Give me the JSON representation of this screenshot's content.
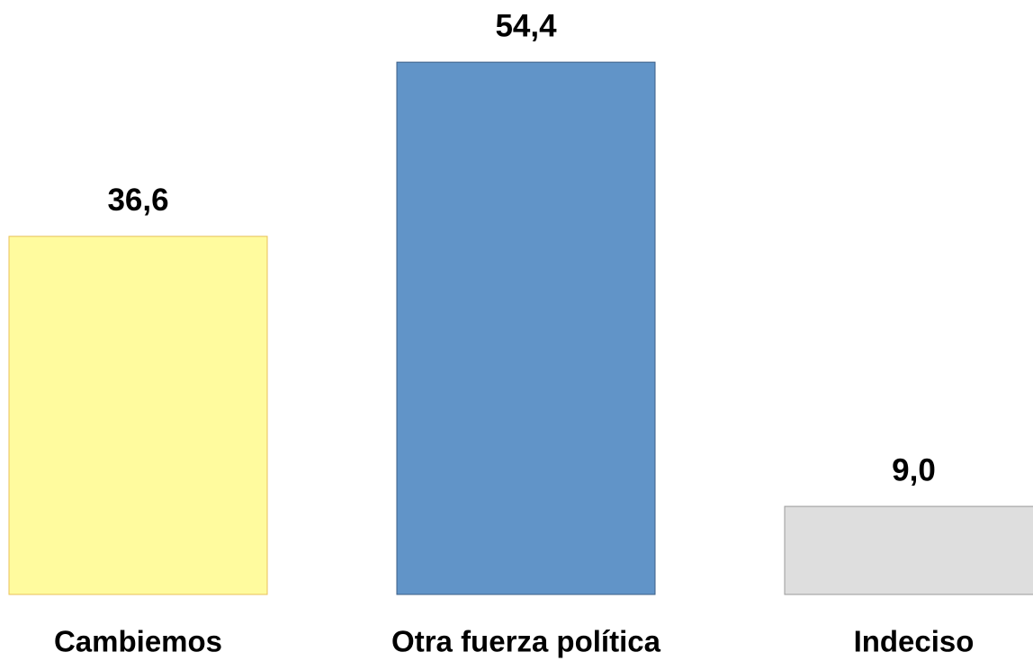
{
  "chart_data": {
    "type": "bar",
    "categories": [
      "Cambiemos",
      "Otra fuerza política",
      "Indeciso"
    ],
    "values": [
      36.6,
      54.4,
      9.0
    ],
    "value_labels": [
      "36,6",
      "54,4",
      "9,0"
    ],
    "colors": [
      "#fffb9e",
      "#6194c8",
      "#dedede"
    ]
  }
}
